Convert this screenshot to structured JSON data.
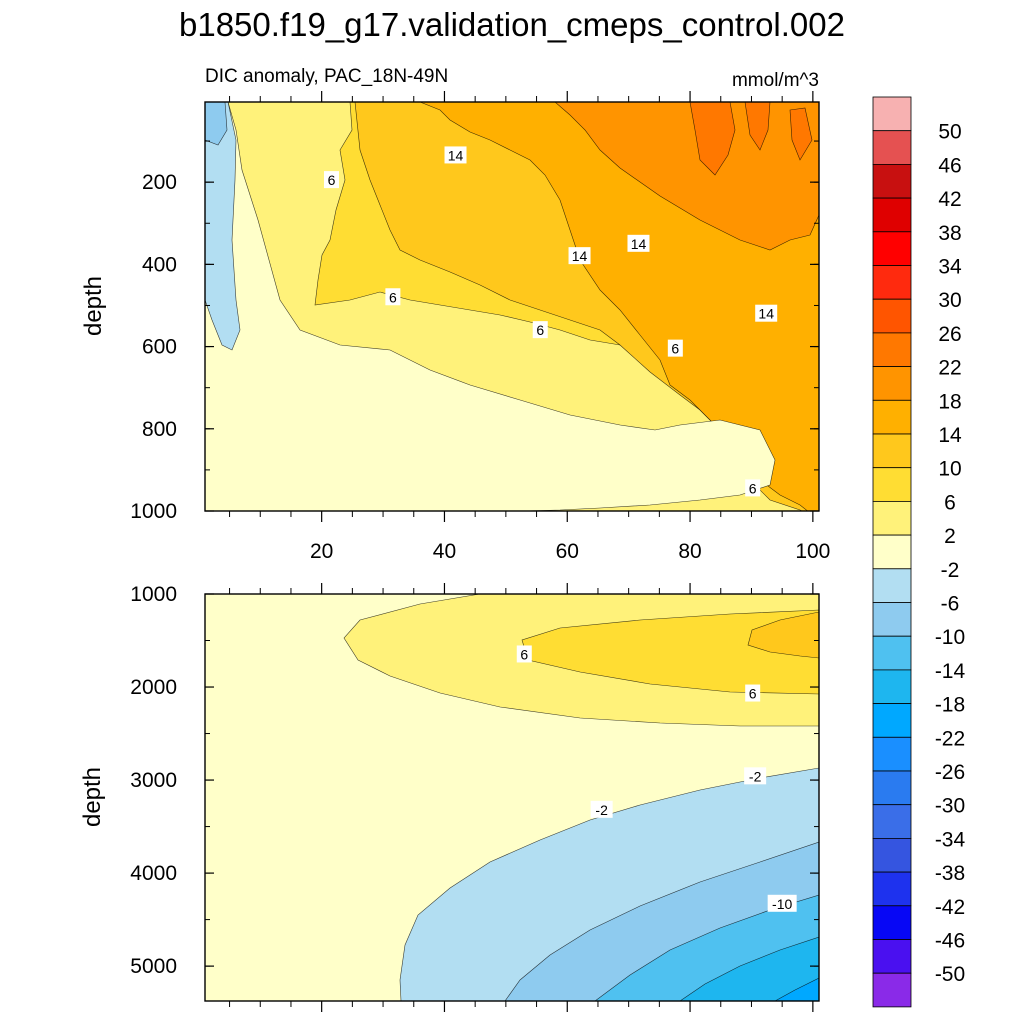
{
  "title": "b1850.f19_g17.validation_cmeps_control.002",
  "chart_data": [
    {
      "type": "heatmap",
      "panel": "upper",
      "left_string": "DIC anomaly, PAC_18N-49N",
      "right_string": "mmol/m^3",
      "ylabel": "depth",
      "xlim": [
        1,
        101
      ],
      "ylim": [
        1000,
        5
      ],
      "y_reversed": true,
      "xticks": [
        20,
        40,
        60,
        80,
        100
      ],
      "yticks": [
        200,
        400,
        600,
        800,
        1000
      ],
      "contour_labels": [
        {
          "text": "14",
          "x": 41.8,
          "y": 135
        },
        {
          "text": "6",
          "x": 21.6,
          "y": 195
        },
        {
          "text": "14",
          "x": 62.0,
          "y": 380
        },
        {
          "text": "14",
          "x": 71.6,
          "y": 350
        },
        {
          "text": "6",
          "x": 31.6,
          "y": 480
        },
        {
          "text": "6",
          "x": 55.6,
          "y": 560
        },
        {
          "text": "14",
          "x": 92.4,
          "y": 520
        },
        {
          "text": "6",
          "x": 77.6,
          "y": 605
        },
        {
          "text": "6",
          "x": 90.2,
          "y": 945
        }
      ]
    },
    {
      "type": "heatmap",
      "panel": "lower",
      "ylabel": "depth",
      "xlim": [
        1,
        101
      ],
      "ylim": [
        5375,
        1000
      ],
      "y_reversed": true,
      "xticks": [
        20,
        40,
        60,
        80,
        100
      ],
      "yticks": [
        1000,
        2000,
        3000,
        4000,
        5000
      ],
      "contour_labels": [
        {
          "text": "6",
          "x": 53.0,
          "y": 1650
        },
        {
          "text": "6",
          "x": 90.2,
          "y": 2070
        },
        {
          "text": "-2",
          "x": 90.6,
          "y": 2960
        },
        {
          "text": "-2",
          "x": 65.6,
          "y": 3320
        },
        {
          "text": "-10",
          "x": 95.0,
          "y": 4330
        }
      ]
    }
  ],
  "colorbar": {
    "labels": [
      "50",
      "46",
      "42",
      "38",
      "34",
      "30",
      "26",
      "22",
      "18",
      "14",
      "10",
      "6",
      "2",
      "-2",
      "-6",
      "-10",
      "-14",
      "-18",
      "-22",
      "-26",
      "-30",
      "-34",
      "-38",
      "-42",
      "-46",
      "-50"
    ],
    "colors": [
      "#f7b1b1",
      "#e55151",
      "#c81010",
      "#df0000",
      "#ff0000",
      "#ff2a0e",
      "#ff5500",
      "#ff7800",
      "#ff9400",
      "#ffb000",
      "#ffc81c",
      "#ffdd33",
      "#fff27a",
      "#ffffc9",
      "#b2def2",
      "#8ecbef",
      "#4fc1f0",
      "#1eb6ef",
      "#00a8ff",
      "#1a8fff",
      "#2a7bf0",
      "#3a6ee8",
      "#3555e0",
      "#1e32ee",
      "#0707f5",
      "#4a10f0",
      "#8a2ae8"
    ]
  }
}
